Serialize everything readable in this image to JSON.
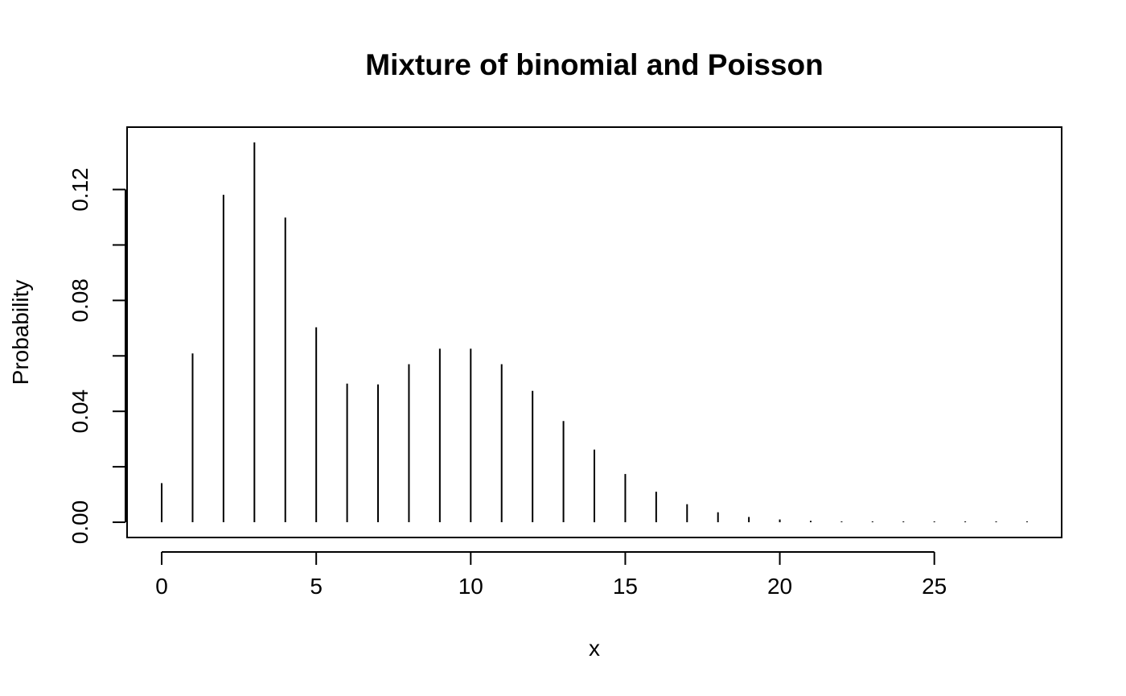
{
  "chart_data": {
    "type": "bar",
    "style": "spike",
    "title": "Mixture of binomial and Poisson",
    "xlabel": "x",
    "ylabel": "Probability",
    "x": [
      0,
      1,
      2,
      3,
      4,
      5,
      6,
      7,
      8,
      9,
      10,
      11,
      12,
      13,
      14,
      15,
      16,
      17,
      18,
      19,
      20,
      21,
      22,
      23,
      24,
      25,
      26,
      27,
      28
    ],
    "values": [
      0.0141,
      0.0609,
      0.1181,
      0.137,
      0.1099,
      0.0703,
      0.05,
      0.0497,
      0.057,
      0.0626,
      0.0626,
      0.057,
      0.0474,
      0.0365,
      0.0262,
      0.0174,
      0.011,
      0.0065,
      0.0036,
      0.0019,
      0.001,
      0.0005,
      0.0002,
      0.0001,
      0.0,
      0.0,
      0.0,
      0.0,
      0.0
    ],
    "xlim": [
      -1.12,
      29.12
    ],
    "ylim": [
      -0.0055,
      0.1425
    ],
    "x_ticks": [
      0,
      5,
      10,
      15,
      20,
      25
    ],
    "x_tick_labels": [
      "0",
      "5",
      "10",
      "15",
      "20",
      "25"
    ],
    "y_ticks": [
      0.0,
      0.02,
      0.04,
      0.06,
      0.08,
      0.1,
      0.12
    ],
    "y_tick_labels": [
      "0.00",
      "",
      "0.04",
      "",
      "0.08",
      "",
      "0.12"
    ],
    "grid": false,
    "color": "#000000"
  }
}
